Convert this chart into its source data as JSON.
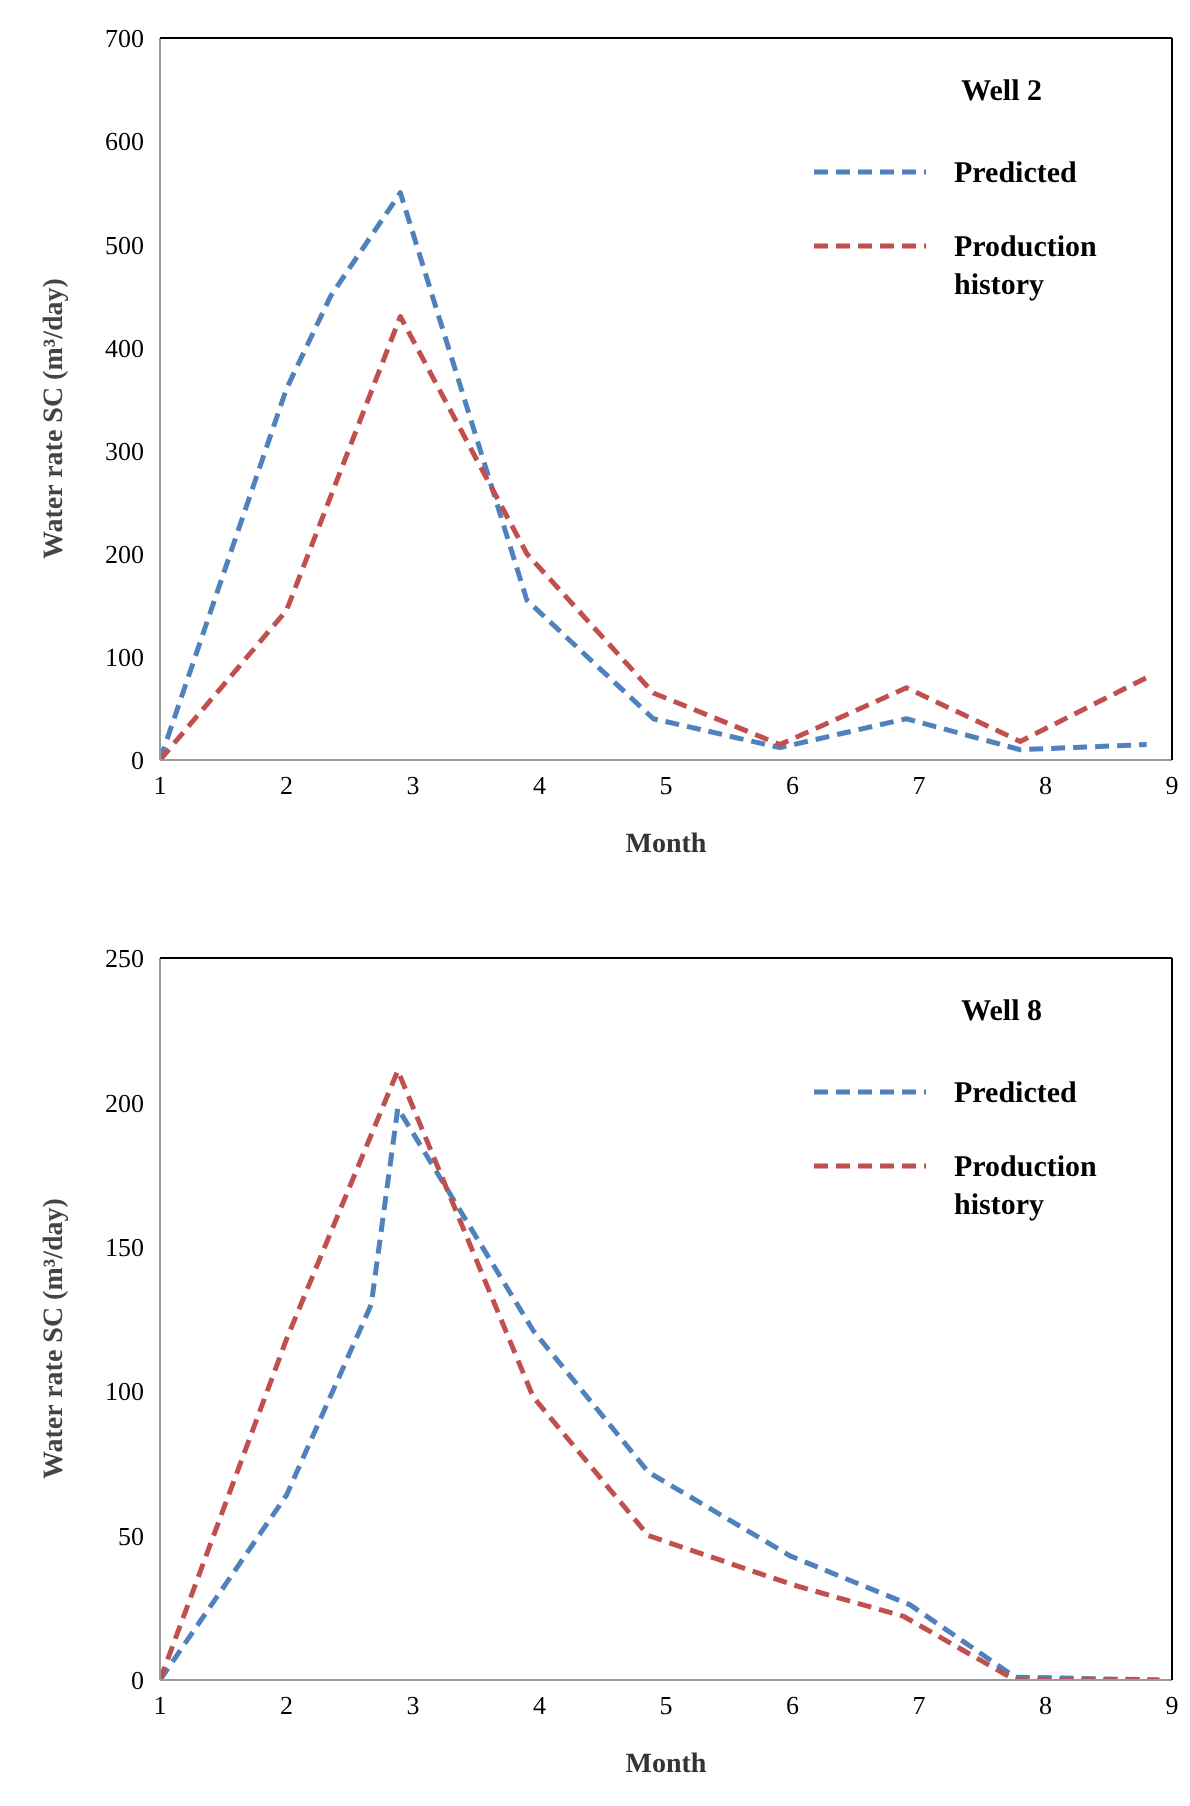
{
  "chart_data": [
    {
      "type": "line",
      "title": "Well 2",
      "xlabel": "Month",
      "ylabel": "Water rate SC (m³/day)",
      "xlim": [
        1,
        9
      ],
      "xticks": [
        1,
        2,
        3,
        4,
        5,
        6,
        7,
        8,
        9
      ],
      "ylim": [
        0,
        700
      ],
      "yticks": [
        0,
        100,
        200,
        300,
        400,
        500,
        600,
        700
      ],
      "grid": false,
      "legend": "top right",
      "marker": "none",
      "line_style": "dashed",
      "series": [
        {
          "name": "Predicted",
          "color": "#4f81bd",
          "x": [
            1,
            2,
            2.35,
            2.9,
            3.9,
            4.9,
            5.9,
            6.9,
            7.8,
            8.8
          ],
          "values": [
            0,
            360,
            450,
            550,
            155,
            40,
            12,
            40,
            10,
            15
          ]
        },
        {
          "name": "Production history",
          "color": "#c0504d",
          "x": [
            1,
            2,
            2.9,
            3.9,
            4.9,
            5.9,
            6.9,
            7.8,
            8.8
          ],
          "values": [
            0,
            145,
            430,
            200,
            65,
            15,
            70,
            18,
            80
          ]
        }
      ]
    },
    {
      "type": "line",
      "title": "Well 8",
      "xlabel": "Month",
      "ylabel": "Water rate SC (m³/day)",
      "xlim": [
        1,
        9
      ],
      "xticks": [
        1,
        2,
        3,
        4,
        5,
        6,
        7,
        8,
        9
      ],
      "ylim": [
        0,
        250
      ],
      "yticks": [
        0,
        50,
        100,
        150,
        200,
        250
      ],
      "grid": false,
      "legend": "top right",
      "marker": "none",
      "line_style": "dashed",
      "series": [
        {
          "name": "Predicted",
          "color": "#4f81bd",
          "x": [
            1,
            2,
            2.67,
            2.88,
            3.95,
            4.86,
            5.98,
            6.93,
            7.76,
            8.9
          ],
          "values": [
            0,
            64,
            130,
            198,
            121,
            72,
            43,
            26,
            1,
            0
          ]
        },
        {
          "name": "Production history",
          "color": "#c0504d",
          "x": [
            1,
            2,
            2.88,
            3.95,
            4.86,
            6,
            6.88,
            7.76,
            8.9
          ],
          "values": [
            0,
            118,
            211,
            98,
            50,
            33,
            22,
            0,
            0
          ]
        }
      ]
    }
  ]
}
